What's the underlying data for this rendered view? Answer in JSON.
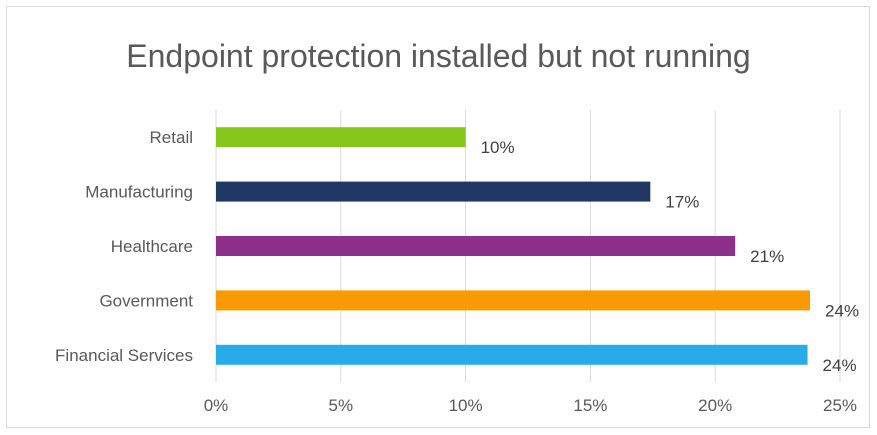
{
  "chart_data": {
    "type": "bar",
    "orientation": "horizontal",
    "title": "Endpoint protection installed but not running",
    "xlabel": "",
    "ylabel": "",
    "categories": [
      "Retail",
      "Manufacturing",
      "Healthcare",
      "Government",
      "Financial Services"
    ],
    "values": [
      0.1,
      0.174,
      0.208,
      0.238,
      0.237
    ],
    "data_labels": [
      "10%",
      "17%",
      "21%",
      "24%",
      "24%"
    ],
    "colors": [
      "#84c61c",
      "#203864",
      "#8e2f8c",
      "#f99b00",
      "#2aabe9"
    ],
    "xlim": [
      0,
      0.25
    ],
    "xticks": [
      0,
      0.05,
      0.1,
      0.15,
      0.2,
      0.25
    ],
    "xtick_labels": [
      "0%",
      "5%",
      "10%",
      "15%",
      "20%",
      "25%"
    ],
    "grid": "vertical",
    "gridline_color": "#d9d9d9",
    "legend": "none"
  }
}
